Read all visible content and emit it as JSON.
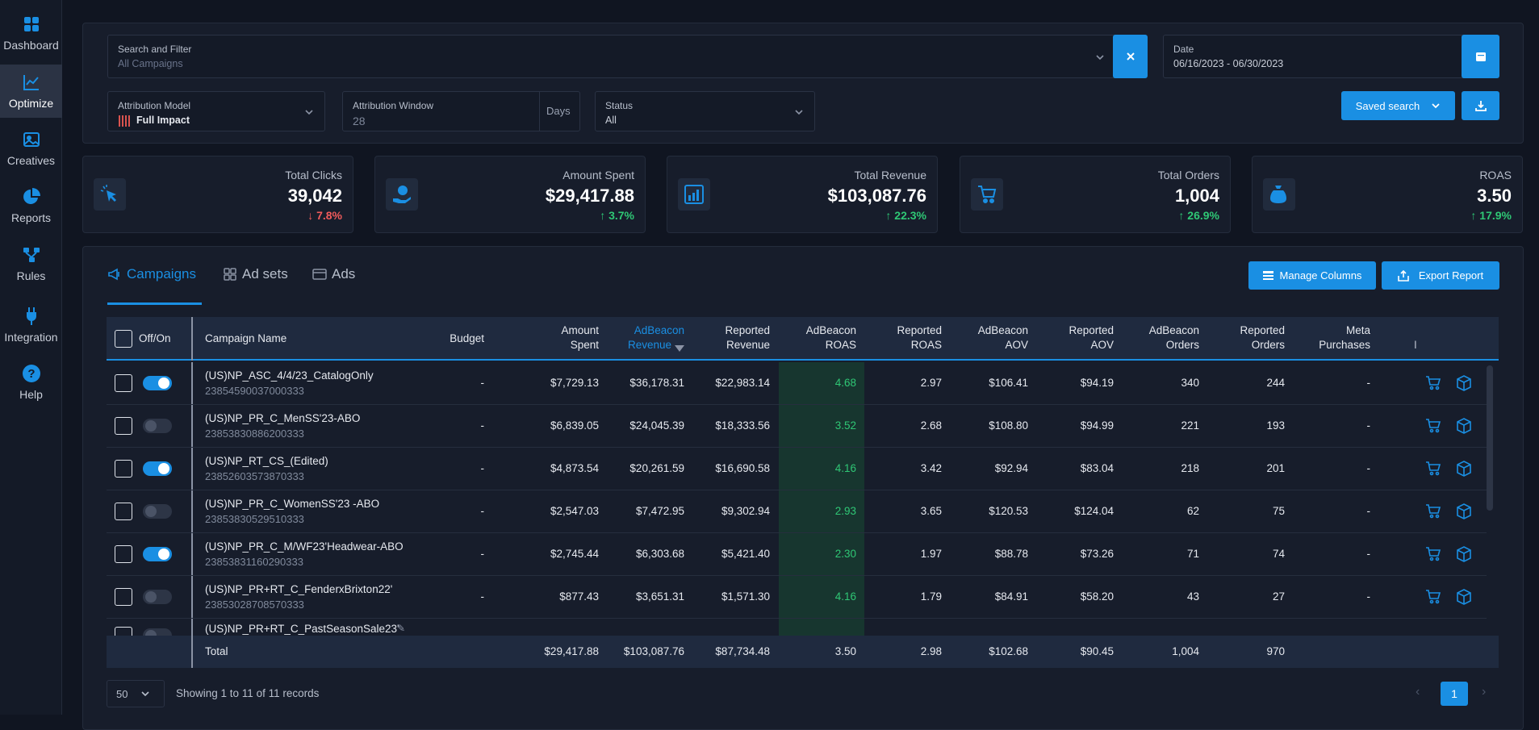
{
  "nav": [
    {
      "label": "Dashboard",
      "icon": "dashboard-icon"
    },
    {
      "label": "Optimize",
      "icon": "chart-line-icon"
    },
    {
      "label": "Creatives",
      "icon": "image-icon"
    },
    {
      "label": "Reports",
      "icon": "pie-chart-icon"
    },
    {
      "label": "Rules",
      "icon": "flow-icon"
    },
    {
      "label": "Integration",
      "icon": "plug-icon"
    },
    {
      "label": "Help",
      "icon": "help-icon"
    }
  ],
  "filters": {
    "search_label": "Search and Filter",
    "search_placeholder": "All Campaigns",
    "date_label": "Date",
    "date_value": "06/16/2023 - 06/30/2023",
    "attr_model_label": "Attribution Model",
    "attr_model_value": "Full Impact",
    "attr_window_label": "Attribution Window",
    "attr_window_value": "28",
    "days": "Days",
    "status_label": "Status",
    "status_value": "All",
    "saved_search": "Saved search"
  },
  "kpis": [
    {
      "title": "Total Clicks",
      "value": "39,042",
      "change": "7.8%",
      "dir": "down"
    },
    {
      "title": "Amount Spent",
      "value": "$29,417.88",
      "change": "3.7%",
      "dir": "up"
    },
    {
      "title": "Total Revenue",
      "value": "$103,087.76",
      "change": "22.3%",
      "dir": "up"
    },
    {
      "title": "Total Orders",
      "value": "1,004",
      "change": "26.9%",
      "dir": "up"
    },
    {
      "title": "ROAS",
      "value": "3.50",
      "change": "17.9%",
      "dir": "up"
    }
  ],
  "tabs": {
    "campaigns": "Campaigns",
    "adsets": "Ad sets",
    "ads": "Ads",
    "manage": "Manage Columns",
    "export": "Export Report"
  },
  "headers": {
    "offon": "Off/On",
    "name": "Campaign Name",
    "budget": "Budget",
    "spent1": "Amount",
    "spent2": "Spent",
    "abrev1": "AdBeacon",
    "abrev2": "Revenue",
    "rrev1": "Reported",
    "rrev2": "Revenue",
    "abroas1": "AdBeacon",
    "abroas2": "ROAS",
    "rroas1": "Reported",
    "rroas2": "ROAS",
    "abaov1": "AdBeacon",
    "abaov2": "AOV",
    "raov1": "Reported",
    "raov2": "AOV",
    "abord1": "AdBeacon",
    "abord2": "Orders",
    "rord1": "Reported",
    "rord2": "Orders",
    "mp1": "Meta",
    "mp2": "Purchases",
    "trunc": "I"
  },
  "rows": [
    {
      "on": true,
      "name": "(US)NP_ASC_4/4/23_CatalogOnly",
      "id": "23854590037000333",
      "budget": "-",
      "spent": "$7,729.13",
      "abrev": "$36,178.31",
      "rrev": "$22,983.14",
      "abroas": "4.68",
      "rroas": "2.97",
      "abaov": "$106.41",
      "raov": "$94.19",
      "abord": "340",
      "rord": "244",
      "mp": "-"
    },
    {
      "on": false,
      "name": "(US)NP_PR_C_MenSS'23-ABO",
      "id": "23853830886200333",
      "budget": "-",
      "spent": "$6,839.05",
      "abrev": "$24,045.39",
      "rrev": "$18,333.56",
      "abroas": "3.52",
      "rroas": "2.68",
      "abaov": "$108.80",
      "raov": "$94.99",
      "abord": "221",
      "rord": "193",
      "mp": "-"
    },
    {
      "on": true,
      "name": "(US)NP_RT_CS_(Edited)",
      "id": "23852603573870333",
      "budget": "-",
      "spent": "$4,873.54",
      "abrev": "$20,261.59",
      "rrev": "$16,690.58",
      "abroas": "4.16",
      "rroas": "3.42",
      "abaov": "$92.94",
      "raov": "$83.04",
      "abord": "218",
      "rord": "201",
      "mp": "-"
    },
    {
      "on": false,
      "name": "(US)NP_PR_C_WomenSS'23 -ABO",
      "id": "23853830529510333",
      "budget": "-",
      "spent": "$2,547.03",
      "abrev": "$7,472.95",
      "rrev": "$9,302.94",
      "abroas": "2.93",
      "rroas": "3.65",
      "abaov": "$120.53",
      "raov": "$124.04",
      "abord": "62",
      "rord": "75",
      "mp": "-"
    },
    {
      "on": true,
      "name": "(US)NP_PR_C_M/WF23'Headwear-ABO",
      "id": "23853831160290333",
      "budget": "-",
      "spent": "$2,745.44",
      "abrev": "$6,303.68",
      "rrev": "$5,421.40",
      "abroas": "2.30",
      "rroas": "1.97",
      "abaov": "$88.78",
      "raov": "$73.26",
      "abord": "71",
      "rord": "74",
      "mp": "-"
    },
    {
      "on": false,
      "name": "(US)NP_PR+RT_C_FenderxBrixton22'",
      "id": "23853028708570333",
      "budget": "-",
      "spent": "$877.43",
      "abrev": "$3,651.31",
      "rrev": "$1,571.30",
      "abroas": "4.16",
      "rroas": "1.79",
      "abaov": "$84.91",
      "raov": "$58.20",
      "abord": "43",
      "rord": "27",
      "mp": "-"
    }
  ],
  "partial_row_name": "(US)NP_PR+RT_C_PastSeasonSale23'",
  "total": {
    "label": "Total",
    "spent": "$29,417.88",
    "abrev": "$103,087.76",
    "rrev": "$87,734.48",
    "abroas": "3.50",
    "rroas": "2.98",
    "abaov": "$102.68",
    "raov": "$90.45",
    "abord": "1,004",
    "rord": "970"
  },
  "pagination": {
    "per_page": "50",
    "showing": "Showing 1 to 11 of 11 records",
    "page": "1"
  },
  "colors": {
    "accent": "#1a8fe3",
    "up": "#2fc775",
    "down": "#f15b5b"
  }
}
